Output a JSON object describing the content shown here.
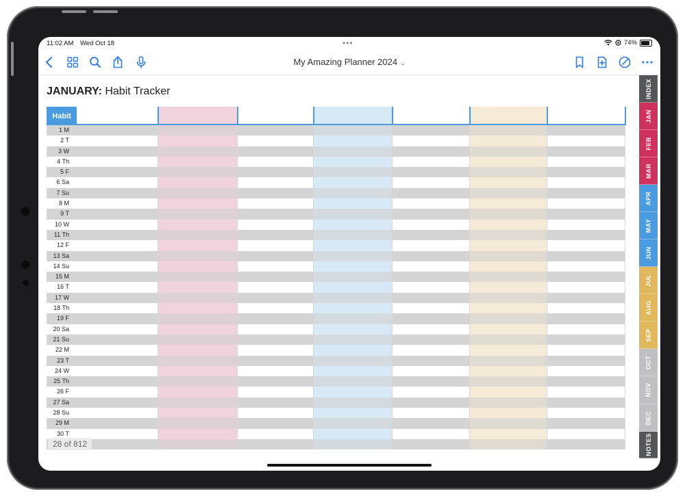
{
  "status": {
    "time": "11:02 AM",
    "date": "Wed Oct 18",
    "battery": "74%"
  },
  "toolbar": {
    "title": "My Amazing Planner 2024",
    "left_icons": [
      "back-icon",
      "grid-icon",
      "search-icon",
      "share-icon",
      "microphone-icon"
    ],
    "right_icons": [
      "bookmark-icon",
      "add-page-icon",
      "pen-icon",
      "more-icon"
    ]
  },
  "page": {
    "month": "JANUARY:",
    "subtitle": "Habit Tracker",
    "habit_header": "Habit",
    "days": [
      "1 M",
      "2 T",
      "3 W",
      "4 Th",
      "5 F",
      "6 Sa",
      "7 Su",
      "8 M",
      "9 T",
      "10 W",
      "11 Th",
      "12 F",
      "13 Sa",
      "14 Su",
      "15 M",
      "16 T",
      "17 W",
      "18 Th",
      "19 F",
      "20 Sa",
      "21 Su",
      "22 M",
      "23 T",
      "24 W",
      "25 Th",
      "26 F",
      "27 Sa",
      "28 Su",
      "29 M",
      "30 T"
    ],
    "column_tints": [
      "none",
      "#f1d3de",
      "none",
      "#d7e8f6",
      "none",
      "#f5ead5",
      "none"
    ],
    "page_indicator": "28 of 812"
  },
  "tabs": [
    {
      "label": "INDEX",
      "color": "#55565a"
    },
    {
      "label": "JAN",
      "color": "#d0325f"
    },
    {
      "label": "FEB",
      "color": "#d0325f"
    },
    {
      "label": "MAR",
      "color": "#d0325f"
    },
    {
      "label": "APR",
      "color": "#4a9be0"
    },
    {
      "label": "MAY",
      "color": "#4a9be0"
    },
    {
      "label": "JUN",
      "color": "#4a9be0"
    },
    {
      "label": "JUL",
      "color": "#e0b75a"
    },
    {
      "label": "AUG",
      "color": "#e0b75a"
    },
    {
      "label": "SEP",
      "color": "#e0b75a"
    },
    {
      "label": "OCT",
      "color": "#c0c0c2"
    },
    {
      "label": "NOV",
      "color": "#c0c0c2"
    },
    {
      "label": "DEC",
      "color": "#c0c0c2"
    },
    {
      "label": "NOTES",
      "color": "#55565a"
    }
  ]
}
